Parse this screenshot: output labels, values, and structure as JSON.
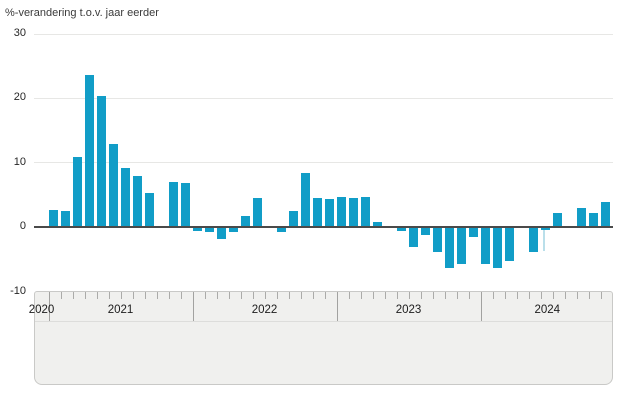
{
  "chart_data": {
    "type": "bar",
    "title": "",
    "ylabel": "%-verandering t.o.v. jaar eerder",
    "ylim": [
      -10,
      30
    ],
    "y_ticks": [
      30,
      20,
      10,
      0,
      -10
    ],
    "grid": true,
    "bar_color": "#119dc7",
    "months": [
      "2021-01",
      "2021-02",
      "2021-03",
      "2021-04",
      "2021-05",
      "2021-06",
      "2021-07",
      "2021-08",
      "2021-09",
      "2021-10",
      "2021-11",
      "2021-12",
      "2022-01",
      "2022-02",
      "2022-03",
      "2022-04",
      "2022-05",
      "2022-06",
      "2022-07",
      "2022-08",
      "2022-09",
      "2022-10",
      "2022-11",
      "2022-12",
      "2023-01",
      "2023-02",
      "2023-03",
      "2023-04",
      "2023-05",
      "2023-06",
      "2023-07",
      "2023-08",
      "2023-09",
      "2023-10",
      "2023-11",
      "2023-12",
      "2024-01",
      "2024-02",
      "2024-03",
      "2024-04",
      "2024-05",
      "2024-06",
      "2024-07",
      "2024-08",
      "2024-09",
      "2024-10",
      "2024-11"
    ],
    "values": [
      2.6,
      2.4,
      10.9,
      23.6,
      20.3,
      12.8,
      9.1,
      7.9,
      5.2,
      0,
      7.0,
      6.8,
      -0.5,
      -0.7,
      -1.8,
      -0.7,
      1.7,
      4.5,
      0,
      -0.7,
      2.5,
      8.4,
      4.4,
      4.3,
      4.6,
      4.4,
      4.6,
      0.8,
      0,
      -0.5,
      -3.0,
      -1.1,
      -3.7,
      -6.2,
      -5.7,
      -1.4,
      -5.7,
      -6.2,
      -5.2,
      0,
      -3.8,
      -0.4,
      2.2,
      0,
      2.9,
      2.1,
      3.9
    ],
    "x_axis_year_labels": [
      "2020",
      "2021",
      "2022",
      "2023",
      "2024"
    ],
    "legend": []
  },
  "axis": {
    "y_title": "%-verandering t.o.v. jaar eerder"
  },
  "footer": {
    "logo_name": "cbs-logo"
  }
}
